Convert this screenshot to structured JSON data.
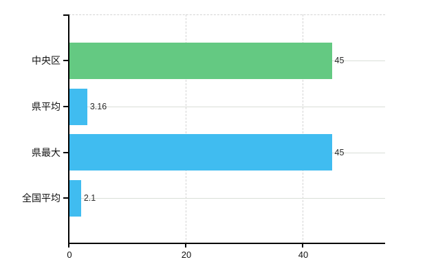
{
  "chart_data": {
    "type": "bar",
    "orientation": "horizontal",
    "title": "",
    "xlabel": "",
    "ylabel": "",
    "categories": [
      "中央区",
      "県平均",
      "県最大",
      "全国平均"
    ],
    "values": [
      45,
      3.16,
      45,
      2.1
    ],
    "value_labels": [
      "45",
      "3.16",
      "45",
      "2.1"
    ],
    "bar_colors": [
      "#64c982",
      "#40bcf0",
      "#40bcf0",
      "#40bcf0"
    ],
    "x_ticks": [
      0,
      20,
      40
    ],
    "x_tick_labels": [
      "0",
      "20",
      "40"
    ],
    "xlim": [
      0,
      54.1
    ],
    "grid": true,
    "legend": false
  },
  "colors": {
    "background": "#ffffff",
    "axis": "#000000",
    "horizontal_gridline": "#d9ded7",
    "vertical_gridline": "#d4d4d4",
    "text": "#111111",
    "value_text": "#2b2b2b",
    "green_bar": "#64c982",
    "blue_bar": "#40bcf0"
  }
}
